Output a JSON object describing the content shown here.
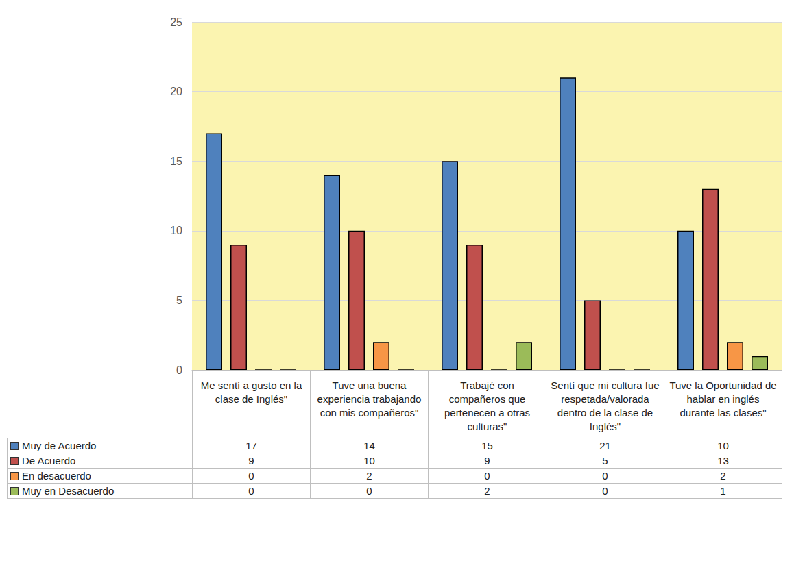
{
  "chart_data": {
    "type": "bar",
    "categories": [
      "Me sentí a gusto en la clase de Inglés\"",
      "Tuve una buena experiencia trabajando con mis compañeros\"",
      "Trabajé con compañeros que pertenecen a otras culturas\"",
      "Sentí que mi cultura fue respetada/valorada dentro de la clase de Inglés\"",
      "Tuve la Oportunidad de hablar en inglés durante las clases\""
    ],
    "series": [
      {
        "name": "Muy de Acuerdo",
        "color": "#4f81bd",
        "values": [
          17,
          14,
          15,
          21,
          10
        ]
      },
      {
        "name": "De Acuerdo",
        "color": "#c0504d",
        "values": [
          9,
          10,
          9,
          5,
          13
        ]
      },
      {
        "name": "En desacuerdo",
        "color": "#f79646",
        "values": [
          0,
          2,
          0,
          0,
          2
        ]
      },
      {
        "name": "Muy en Desacuerdo",
        "color": "#9bbb59",
        "values": [
          0,
          0,
          2,
          0,
          1
        ]
      }
    ],
    "ylim": [
      0,
      25
    ],
    "yticks": [
      0,
      5,
      10,
      15,
      20,
      25
    ],
    "grid": true,
    "legend": "bottom"
  }
}
